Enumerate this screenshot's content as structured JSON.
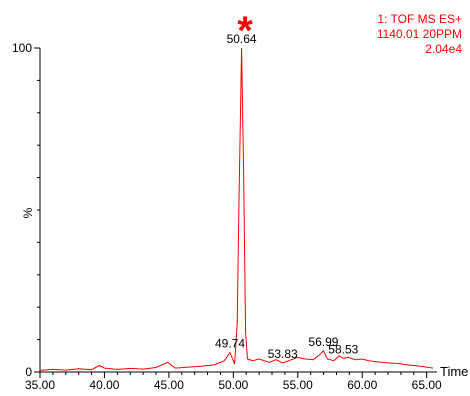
{
  "instrument_info": {
    "line1": "1: TOF MS ES+",
    "line2": "1140.01 20PPM",
    "line3": "2.04e4",
    "color": "#ff0000"
  },
  "marker": {
    "symbol": "*",
    "color": "#ff0000"
  },
  "chart_data": {
    "type": "line",
    "xlabel": "Time",
    "ylabel": "%",
    "xlim": [
      35,
      65.8
    ],
    "ylim": [
      0,
      100
    ],
    "x_ticks": [
      "35.00",
      "40.00",
      "45.00",
      "50.00",
      "55.00",
      "60.00",
      "65.00"
    ],
    "y_ticks": [
      "0",
      "100"
    ],
    "line_color": "#ff0000",
    "grid": false,
    "legend": "none",
    "series": [
      {
        "x": [
          35.0,
          36.0,
          37.0,
          38.0,
          39.0,
          39.6,
          40.0,
          41.0,
          42.0,
          43.0,
          44.0,
          44.9,
          45.5,
          46.5,
          47.5,
          48.5,
          49.3,
          49.74,
          50.1,
          50.3,
          50.45,
          50.64,
          50.8,
          50.95,
          51.1,
          51.5,
          52.0,
          52.8,
          53.3,
          53.83,
          54.3,
          55.0,
          55.6,
          56.2,
          56.6,
          56.99,
          57.3,
          57.8,
          58.2,
          58.53,
          58.9,
          59.5,
          60.0,
          60.5,
          61.0,
          61.5,
          62.0,
          62.5,
          63.0,
          63.5,
          64.0,
          64.5,
          65.0,
          65.5
        ],
        "y": [
          0.5,
          0.8,
          0.6,
          1.0,
          0.7,
          2.0,
          1.2,
          0.8,
          1.1,
          0.9,
          1.4,
          3.0,
          1.2,
          1.5,
          1.8,
          2.2,
          3.5,
          6.0,
          2.5,
          15.0,
          55.0,
          100.0,
          60.0,
          12.0,
          4.0,
          3.5,
          4.0,
          3.0,
          3.8,
          2.8,
          3.5,
          4.5,
          4.0,
          3.8,
          5.0,
          6.5,
          4.0,
          3.5,
          5.0,
          4.2,
          4.5,
          3.8,
          4.0,
          3.5,
          3.2,
          3.0,
          2.8,
          2.7,
          2.5,
          2.2,
          2.0,
          1.8,
          1.5,
          1.2
        ]
      }
    ],
    "peak_labels": [
      {
        "x": 50.64,
        "y": 100.0,
        "label": "50.64"
      },
      {
        "x": 49.74,
        "y": 6.0,
        "label": "49.74"
      },
      {
        "x": 53.83,
        "y": 2.8,
        "label": "53.83"
      },
      {
        "x": 56.99,
        "y": 6.5,
        "label": "56.99"
      },
      {
        "x": 58.53,
        "y": 4.2,
        "label": "58.53"
      }
    ]
  }
}
